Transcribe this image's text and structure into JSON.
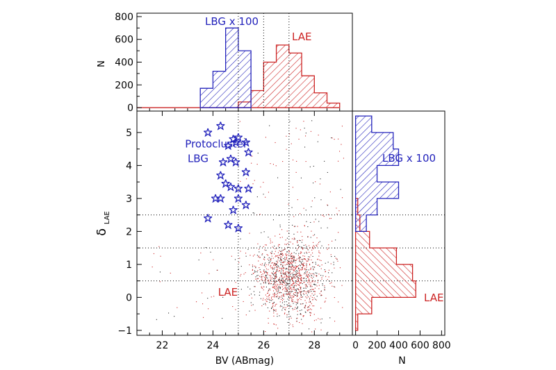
{
  "colors": {
    "lbg": "#2222bb",
    "lae": "#cc2222",
    "axis": "#000000"
  },
  "chart_data": [
    {
      "panel": "top-histogram",
      "type": "histogram",
      "ylabel": "N",
      "xlim": [
        21,
        29.5
      ],
      "ylim": [
        -30,
        830
      ],
      "yticks": [
        0,
        200,
        400,
        600,
        800
      ],
      "bin_width": 0.5,
      "reference_lines_x": [
        25,
        26,
        27
      ],
      "series": [
        {
          "name": "LBG x 100",
          "color": "#2222bb",
          "bin_edges": [
            23.5,
            24.0,
            24.5,
            25.0,
            25.5
          ],
          "counts": [
            170,
            320,
            700,
            500
          ]
        },
        {
          "name": "LAE",
          "color": "#cc2222",
          "bin_edges": [
            21.0,
            25.0,
            25.5,
            26.0,
            26.5,
            27.0,
            27.5,
            28.0,
            28.5,
            29.0
          ],
          "counts": [
            0,
            50,
            150,
            400,
            550,
            480,
            280,
            130,
            40
          ]
        }
      ]
    },
    {
      "panel": "main-scatter",
      "type": "scatter",
      "xlabel": "BV (ABmag)",
      "ylabel": "δ",
      "ylabel_sub": "LAE",
      "xlim": [
        21,
        29.5
      ],
      "ylim": [
        -1.15,
        5.65
      ],
      "xticks": [
        22,
        24,
        26,
        28
      ],
      "yticks": [
        -1,
        0,
        1,
        2,
        3,
        4,
        5
      ],
      "reference_lines_x": [
        25,
        27
      ],
      "reference_lines_y": [
        0.5,
        1.5,
        2.5
      ],
      "annotations": [
        {
          "text": "Protocluster",
          "x": 22.9,
          "y": 4.55,
          "color": "#2222bb"
        },
        {
          "text": "LBG",
          "x": 23.0,
          "y": 4.1,
          "color": "#2222bb"
        },
        {
          "text": "LAE",
          "x": 24.2,
          "y": 0.05,
          "color": "#cc2222"
        }
      ],
      "series": [
        {
          "name": "Protocluster LBG",
          "marker": "star",
          "color": "#2222bb",
          "points": [
            [
              23.8,
              5.0
            ],
            [
              24.3,
              5.2
            ],
            [
              24.8,
              4.8
            ],
            [
              25.0,
              4.85
            ],
            [
              24.9,
              4.7
            ],
            [
              24.6,
              4.6
            ],
            [
              25.3,
              4.7
            ],
            [
              25.4,
              4.4
            ],
            [
              24.7,
              4.2
            ],
            [
              24.9,
              4.1
            ],
            [
              24.4,
              4.1
            ],
            [
              25.3,
              3.8
            ],
            [
              24.3,
              3.7
            ],
            [
              24.5,
              3.45
            ],
            [
              24.7,
              3.35
            ],
            [
              25.0,
              3.3
            ],
            [
              25.4,
              3.3
            ],
            [
              24.1,
              3.0
            ],
            [
              24.3,
              3.0
            ],
            [
              25.0,
              3.0
            ],
            [
              25.3,
              2.8
            ],
            [
              24.8,
              2.65
            ],
            [
              23.8,
              2.4
            ],
            [
              24.6,
              2.2
            ],
            [
              25.0,
              2.1
            ]
          ]
        },
        {
          "name": "LAE",
          "marker": "dot",
          "color": "#cc2222",
          "distribution": {
            "center_x": 27.0,
            "center_y": 0.6,
            "n": 1500
          }
        }
      ]
    },
    {
      "panel": "right-histogram",
      "type": "histogram",
      "orientation": "horizontal",
      "xlabel": "N",
      "xlim": [
        -30,
        830
      ],
      "ylim": [
        -1.15,
        5.65
      ],
      "xticks": [
        0,
        200,
        400,
        600,
        800
      ],
      "bin_width": 0.5,
      "series": [
        {
          "name": "LBG x 100",
          "color": "#2222bb",
          "bin_edges": [
            2.0,
            2.5,
            3.0,
            3.5,
            4.0,
            4.5,
            5.0,
            5.5
          ],
          "counts": [
            100,
            200,
            400,
            200,
            400,
            350,
            150
          ]
        },
        {
          "name": "LAE",
          "color": "#cc2222",
          "bin_edges": [
            -1.0,
            -0.5,
            0.0,
            0.5,
            1.0,
            1.5,
            2.0,
            2.5,
            3.0
          ],
          "counts": [
            20,
            150,
            560,
            530,
            380,
            130,
            40,
            20
          ]
        }
      ]
    }
  ],
  "labels": {
    "top_legend_lbg": "LBG x 100",
    "top_legend_lae": "LAE",
    "right_legend_lbg": "LBG x 100",
    "right_legend_lae": "LAE",
    "main_xlabel": "BV (ABmag)",
    "main_ylabel": "δ",
    "main_ylabel_sub": "LAE",
    "top_ylabel": "N",
    "right_xlabel": "N",
    "annot_protocluster": "Protocluster",
    "annot_lbg": "LBG",
    "annot_lae": "LAE"
  }
}
